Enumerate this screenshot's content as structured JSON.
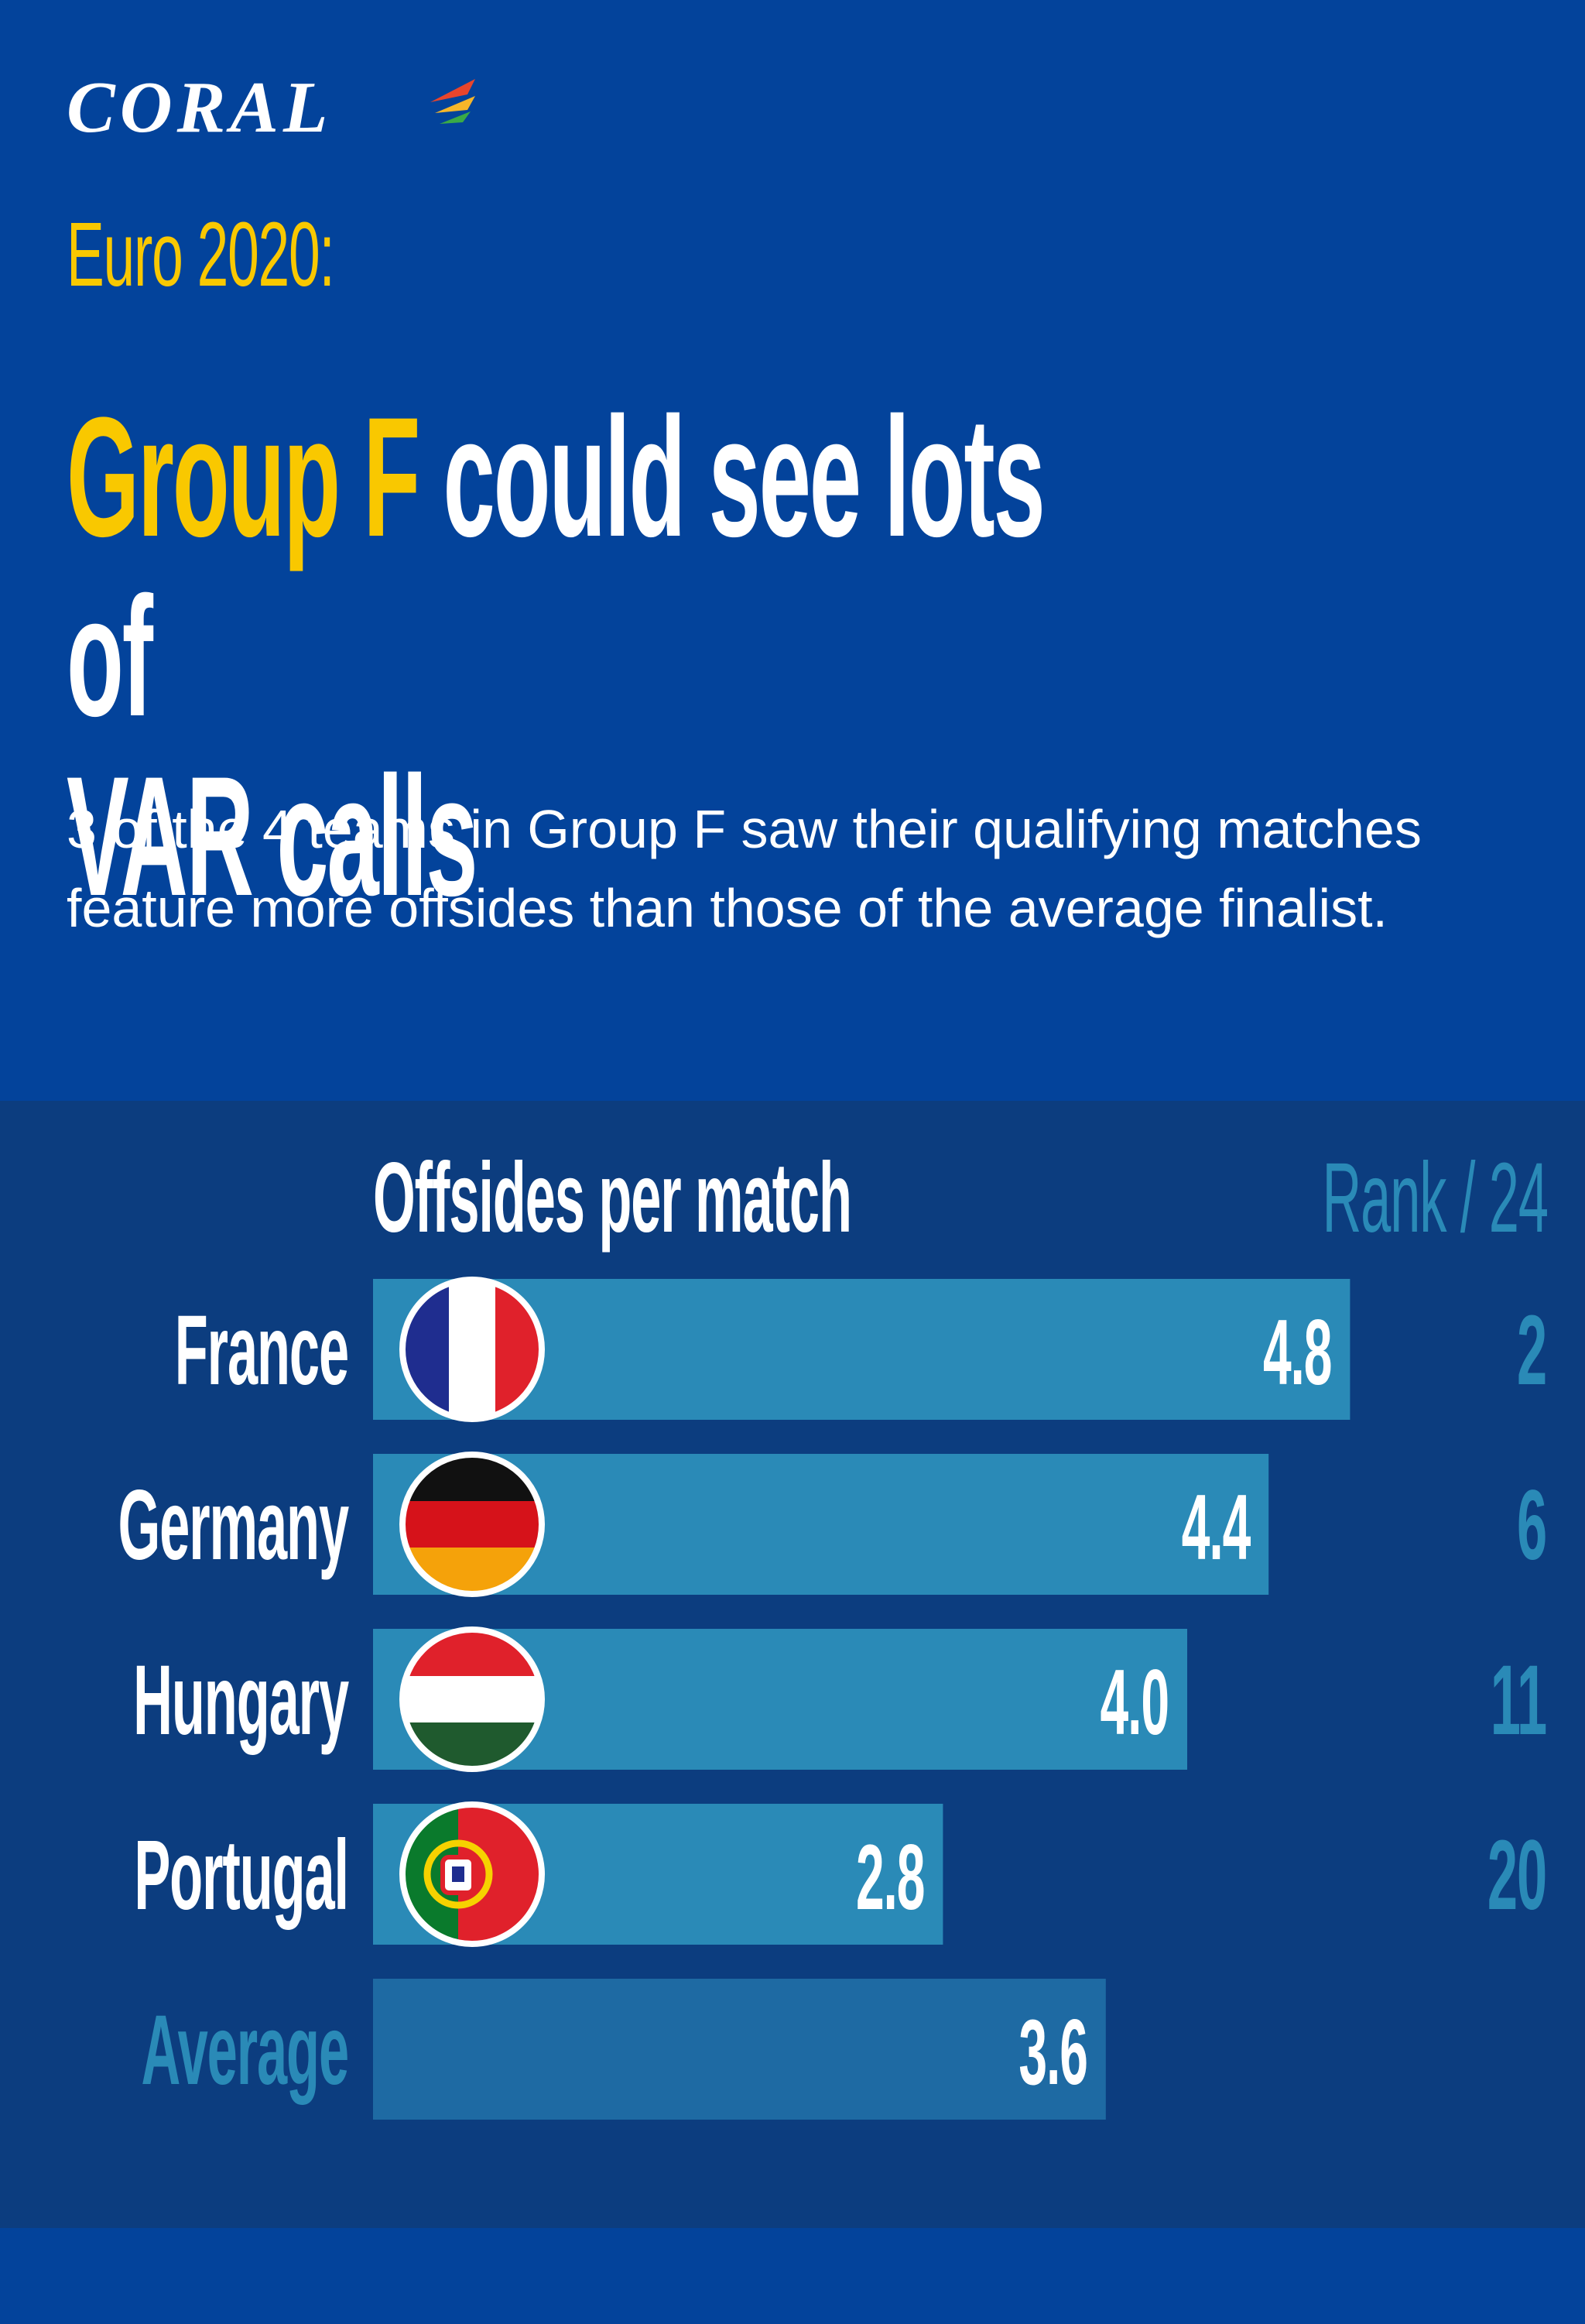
{
  "brand": {
    "name": "CORAL"
  },
  "header": {
    "kicker": "Euro 2020:",
    "headline_highlight": "Group F",
    "headline_rest": "could see lots of VAR calls",
    "subtitle": "3 of the 4 teams in Group F saw their qualifying matches feature more offsides than those of the average finalist."
  },
  "colors": {
    "background": "#03439b",
    "chart_panel": "#0c3d7f",
    "bar": "#2a8ab7",
    "average_bar": "#1e6aa3",
    "accent_yellow": "#f9c800",
    "rank_text": "#2a8ab7"
  },
  "chart_data": {
    "type": "bar",
    "orientation": "horizontal",
    "title": "Offsides per match",
    "rank_header": "Rank / 24",
    "categories": [
      "France",
      "Germany",
      "Hungary",
      "Portugal",
      "Average"
    ],
    "values": [
      4.8,
      4.4,
      4.0,
      2.8,
      3.6
    ],
    "value_labels": [
      "4.8",
      "4.4",
      "4.0",
      "2.8",
      "3.6"
    ],
    "ranks": [
      "2",
      "6",
      "11",
      "20",
      ""
    ],
    "flags": [
      "france-flag-icon",
      "germany-flag-icon",
      "hungary-flag-icon",
      "portugal-flag-icon",
      ""
    ],
    "grid": false,
    "legend": "none"
  }
}
